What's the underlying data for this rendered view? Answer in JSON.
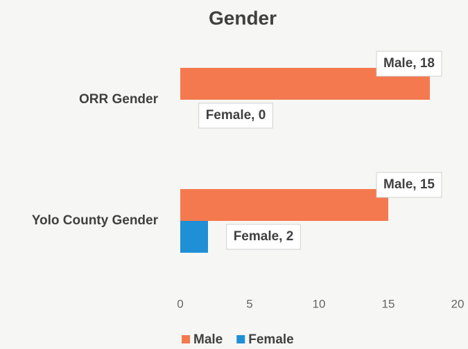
{
  "chart_data": {
    "type": "barh",
    "title": "Gender",
    "categories": [
      "ORR Gender",
      "Yolo County Gender"
    ],
    "series": [
      {
        "name": "Male",
        "color": "#f4794f",
        "values": [
          18,
          15
        ],
        "value_labels": [
          "Male, 18",
          "Male, 15"
        ]
      },
      {
        "name": "Female",
        "color": "#1f8fd6",
        "values": [
          0,
          2
        ],
        "value_labels": [
          "Female, 0",
          "Female, 2"
        ]
      }
    ],
    "xlim": [
      0,
      20
    ],
    "xticks": [
      0,
      5,
      10,
      15,
      20
    ],
    "grid": false,
    "legend": "bottom"
  }
}
